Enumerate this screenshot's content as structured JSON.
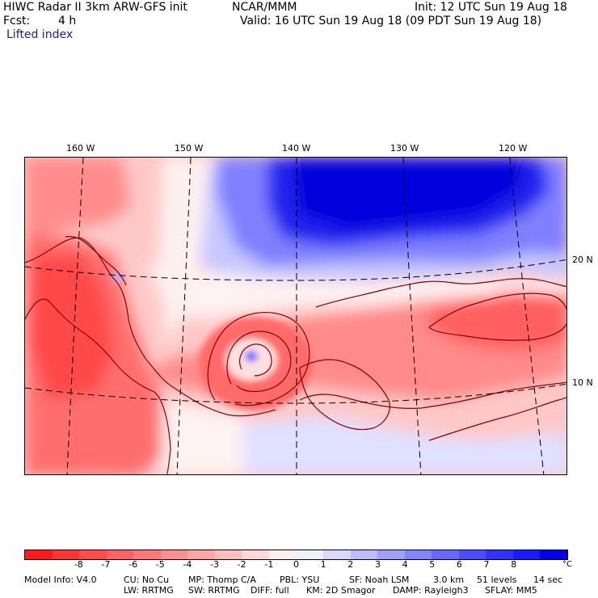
{
  "header": {
    "title": "HIWC Radar II 3km ARW-GFS init",
    "org": "NCAR/MMM",
    "init": "Init: 12 UTC Sun 19 Aug 18",
    "fcst_label": "Fcst:",
    "fcst_value": "4 h",
    "valid": "Valid: 16 UTC Sun 19 Aug 18 (09 PDT Sun 19 Aug 18)",
    "field": "Lifted index"
  },
  "map": {
    "lon_labels": [
      "160 W",
      "150 W",
      "140 W",
      "130 W",
      "120 W"
    ],
    "lat_labels": [
      "20 N",
      "10 N"
    ],
    "colors": {
      "contour": "#8b0000",
      "grid": "#000000"
    }
  },
  "colorbar": {
    "ticks": [
      "-8",
      "-7",
      "-6",
      "-5",
      "-4",
      "-3",
      "-2",
      "-1",
      "0",
      "1",
      "2",
      "3",
      "4",
      "5",
      "6",
      "7",
      "8"
    ],
    "unit": "°C",
    "colors": [
      "#ff1a1a",
      "#ff3535",
      "#ff4c4c",
      "#ff6262",
      "#ff7878",
      "#ff8e8e",
      "#ffa6a6",
      "#ffbebe",
      "#ffd8d8",
      "#ffefef",
      "#efefff",
      "#d8d8ff",
      "#bcbcff",
      "#a0a0ff",
      "#8484ff",
      "#6868ff",
      "#4c4cff",
      "#3232ff",
      "#1a1aff",
      "#0000ee"
    ]
  },
  "model_info": {
    "line1": [
      "Model Info: V4.0",
      "CU: No Cu",
      "MP: Thomp C/A",
      "PBL: YSU",
      "SF: Noah LSM",
      "3.0 km",
      "51 levels",
      "14 sec"
    ],
    "line2": [
      "LW: RRTMG",
      "SW: RRTMG",
      "DIFF: full",
      "KM: 2D Smagor",
      "DAMP: Rayleigh3",
      "SFLAY: MM5"
    ]
  }
}
